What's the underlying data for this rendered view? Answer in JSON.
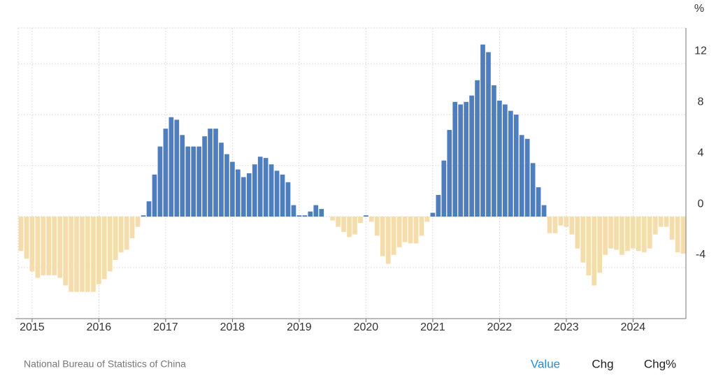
{
  "chart_data": {
    "type": "bar",
    "unit": "%",
    "source": "National Bureau of Statistics of China",
    "buttons": [
      "Value",
      "Chg",
      "Chg%"
    ],
    "categories": [
      null,
      null,
      "2015",
      null,
      null,
      null,
      null,
      null,
      null,
      null,
      null,
      null,
      null,
      null,
      "2016",
      null,
      null,
      null,
      null,
      null,
      null,
      null,
      null,
      null,
      null,
      null,
      "2017",
      null,
      null,
      null,
      null,
      null,
      null,
      null,
      null,
      null,
      null,
      null,
      "2018",
      null,
      null,
      null,
      null,
      null,
      null,
      null,
      null,
      null,
      null,
      null,
      "2019",
      null,
      null,
      null,
      null,
      null,
      null,
      null,
      null,
      null,
      null,
      null,
      "2020",
      null,
      null,
      null,
      null,
      null,
      null,
      null,
      null,
      null,
      null,
      null,
      "2021",
      null,
      null,
      null,
      null,
      null,
      null,
      null,
      null,
      null,
      null,
      null,
      "2022",
      null,
      null,
      null,
      null,
      null,
      null,
      null,
      null,
      null,
      null,
      null,
      "2023",
      null,
      null,
      null,
      null,
      null,
      null,
      null,
      null,
      null,
      null,
      null,
      "2024",
      null,
      null,
      null,
      null,
      null,
      null,
      null,
      null,
      null
    ],
    "values": [
      -2.7,
      -3.3,
      -4.3,
      -4.8,
      -4.6,
      -4.6,
      -4.6,
      -4.8,
      -5.4,
      -5.9,
      -5.9,
      -5.9,
      -5.9,
      -5.9,
      -5.3,
      -4.9,
      -4.3,
      -3.4,
      -2.8,
      -2.6,
      -1.7,
      -0.8,
      0.1,
      1.2,
      3.3,
      5.5,
      6.9,
      7.8,
      7.6,
      6.4,
      5.5,
      5.5,
      5.5,
      6.3,
      6.9,
      6.9,
      5.8,
      4.9,
      4.3,
      3.7,
      3.1,
      3.4,
      4.1,
      4.7,
      4.6,
      4.1,
      3.6,
      3.3,
      2.7,
      0.9,
      0.1,
      0.1,
      0.4,
      0.9,
      0.6,
      0.0,
      -0.3,
      -0.8,
      -1.2,
      -1.6,
      -1.4,
      -0.5,
      0.1,
      -0.4,
      -1.5,
      -3.1,
      -3.7,
      -3.0,
      -2.4,
      -2.0,
      -2.1,
      -2.1,
      -1.5,
      -0.4,
      0.3,
      1.7,
      4.4,
      6.8,
      9.0,
      8.8,
      9.0,
      9.5,
      10.7,
      13.5,
      12.9,
      10.3,
      9.1,
      8.8,
      8.3,
      8.0,
      6.4,
      6.1,
      4.2,
      2.3,
      0.9,
      -1.3,
      -1.3,
      -0.7,
      -0.8,
      -1.4,
      -2.5,
      -3.6,
      -4.6,
      -5.4,
      -4.4,
      -3.0,
      -2.5,
      -2.6,
      -3.0,
      -2.7,
      -2.5,
      -2.7,
      -2.8,
      -2.5,
      -1.4,
      -0.8,
      -0.8,
      -1.8,
      -2.8,
      -2.9
    ],
    "positive_color": "#4d7ebf",
    "negative_color": "#f5dcad",
    "ylim": [
      -8,
      14.8
    ],
    "yticks": [
      -4,
      0,
      4,
      8,
      12
    ],
    "grid": true
  }
}
